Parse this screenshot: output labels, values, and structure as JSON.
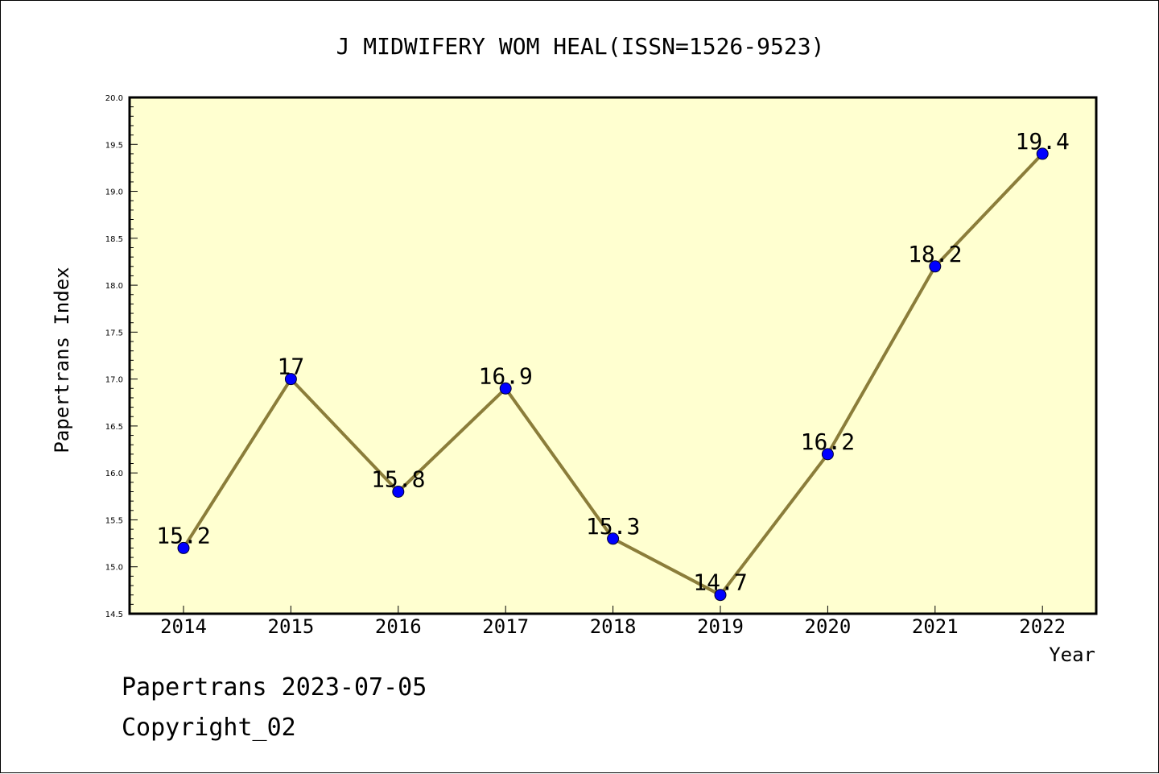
{
  "chart_data": {
    "type": "line",
    "title": "J MIDWIFERY WOM HEAL(ISSN=1526-9523)",
    "xlabel": "Year",
    "ylabel": "Papertrans Index",
    "categories": [
      "2014",
      "2015",
      "2016",
      "2017",
      "2018",
      "2019",
      "2020",
      "2021",
      "2022"
    ],
    "values": [
      15.2,
      17,
      15.8,
      16.9,
      15.3,
      14.7,
      16.2,
      18.2,
      19.4
    ],
    "data_labels": [
      "15.2",
      "17",
      "15.8",
      "16.9",
      "15.3",
      "14.7",
      "16.2",
      "18.2",
      "19.4"
    ],
    "ylim": [
      14.5,
      20.0
    ],
    "yticks": [
      "14.5",
      "15.0",
      "15.5",
      "16.0",
      "16.5",
      "17.0",
      "17.5",
      "18.0",
      "18.5",
      "19.0",
      "19.5",
      "20.0"
    ],
    "grid": false,
    "colors": {
      "plot_background": "#ffffd0",
      "line": "#8b7d3a",
      "marker": "#0000ff"
    }
  },
  "footer": {
    "line1": "Papertrans 2023-07-05",
    "line2": "Copyright_02"
  }
}
